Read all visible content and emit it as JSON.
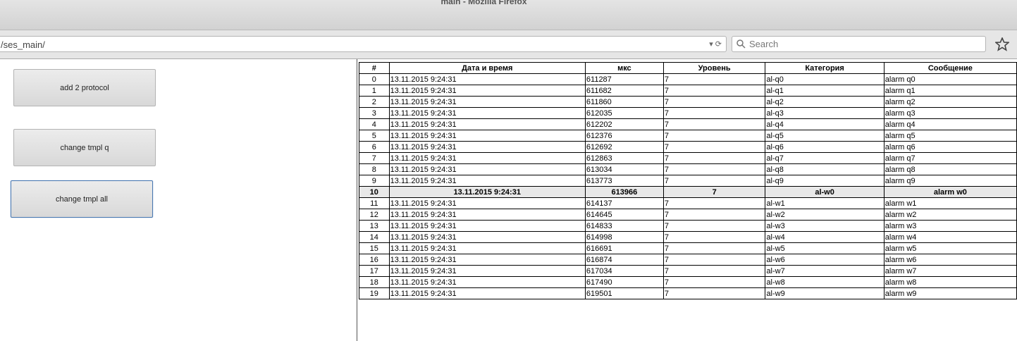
{
  "window": {
    "title": "main - Mozilla Firefox"
  },
  "toolbar": {
    "url": "/ses_main/",
    "search_placeholder": "Search"
  },
  "buttons": [
    "add 2 protocol",
    "change tmpl q",
    "change tmpl all"
  ],
  "table": {
    "headers": [
      "#",
      "Дата и время",
      "мкс",
      "Уровень",
      "Категория",
      "Сообщение"
    ],
    "selected_row": 10,
    "rows": [
      [
        0,
        "13.11.2015 9:24:31",
        611287,
        7,
        "al-q0",
        "alarm q0"
      ],
      [
        1,
        "13.11.2015 9:24:31",
        611682,
        7,
        "al-q1",
        "alarm q1"
      ],
      [
        2,
        "13.11.2015 9:24:31",
        611860,
        7,
        "al-q2",
        "alarm q2"
      ],
      [
        3,
        "13.11.2015 9:24:31",
        612035,
        7,
        "al-q3",
        "alarm q3"
      ],
      [
        4,
        "13.11.2015 9:24:31",
        612202,
        7,
        "al-q4",
        "alarm q4"
      ],
      [
        5,
        "13.11.2015 9:24:31",
        612376,
        7,
        "al-q5",
        "alarm q5"
      ],
      [
        6,
        "13.11.2015 9:24:31",
        612692,
        7,
        "al-q6",
        "alarm q6"
      ],
      [
        7,
        "13.11.2015 9:24:31",
        612863,
        7,
        "al-q7",
        "alarm q7"
      ],
      [
        8,
        "13.11.2015 9:24:31",
        613034,
        7,
        "al-q8",
        "alarm q8"
      ],
      [
        9,
        "13.11.2015 9:24:31",
        613773,
        7,
        "al-q9",
        "alarm q9"
      ],
      [
        10,
        "13.11.2015 9:24:31",
        613966,
        7,
        "al-w0",
        "alarm w0"
      ],
      [
        11,
        "13.11.2015 9:24:31",
        614137,
        7,
        "al-w1",
        "alarm w1"
      ],
      [
        12,
        "13.11.2015 9:24:31",
        614645,
        7,
        "al-w2",
        "alarm w2"
      ],
      [
        13,
        "13.11.2015 9:24:31",
        614833,
        7,
        "al-w3",
        "alarm w3"
      ],
      [
        14,
        "13.11.2015 9:24:31",
        614998,
        7,
        "al-w4",
        "alarm w4"
      ],
      [
        15,
        "13.11.2015 9:24:31",
        616691,
        7,
        "al-w5",
        "alarm w5"
      ],
      [
        16,
        "13.11.2015 9:24:31",
        616874,
        7,
        "al-w6",
        "alarm w6"
      ],
      [
        17,
        "13.11.2015 9:24:31",
        617034,
        7,
        "al-w7",
        "alarm w7"
      ],
      [
        18,
        "13.11.2015 9:24:31",
        617490,
        7,
        "al-w8",
        "alarm w8"
      ],
      [
        19,
        "13.11.2015 9:24:31",
        619501,
        7,
        "al-w9",
        "alarm w9"
      ]
    ]
  }
}
